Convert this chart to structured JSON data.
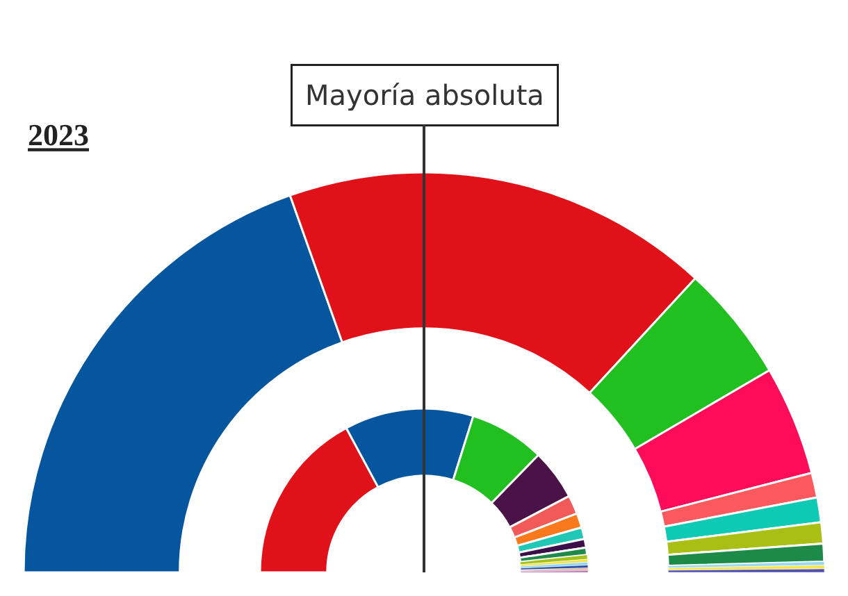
{
  "chart_data": [
    {
      "type": "donut",
      "title": "2023",
      "annotations": [
        "Mayoría absoluta"
      ],
      "categories": [
        null,
        null,
        null,
        null,
        null,
        null,
        null,
        null,
        null,
        null,
        null
      ],
      "values": [
        39.14,
        34.57,
        9.43,
        8.86,
        2.0,
        2.0,
        1.71,
        1.43,
        0.29,
        0.29,
        0.28
      ],
      "colors": [
        "#05559f",
        "#e11119",
        "#21bf1f",
        "#fe0c5a",
        "#fd5a5f",
        "#0ec9b4",
        "#a9bf13",
        "#1e8a4a",
        "#9ad9f0",
        "#f7e34a",
        "#5050b0"
      ]
    },
    {
      "type": "donut",
      "categories": [
        null,
        null,
        null,
        null,
        null,
        null,
        null,
        null,
        null,
        null,
        null,
        null,
        null,
        null,
        null,
        null
      ],
      "values": [
        34.29,
        25.43,
        14.86,
        10.0,
        3.71,
        2.86,
        2.29,
        1.71,
        1.43,
        0.86,
        0.57,
        0.57,
        0.57,
        0.29,
        0.28,
        0.28
      ],
      "colors": [
        "#e11119",
        "#05559f",
        "#21bf1f",
        "#4b1248",
        "#f25a5a",
        "#f97a1d",
        "#1ec8b4",
        "#3a0f4a",
        "#1f8a4c",
        "#a4c21a",
        "#f5e14a",
        "#8dd8f0",
        "#3050a0",
        "#c8a878",
        "#f07aa0",
        "#8050a0"
      ]
    }
  ]
}
